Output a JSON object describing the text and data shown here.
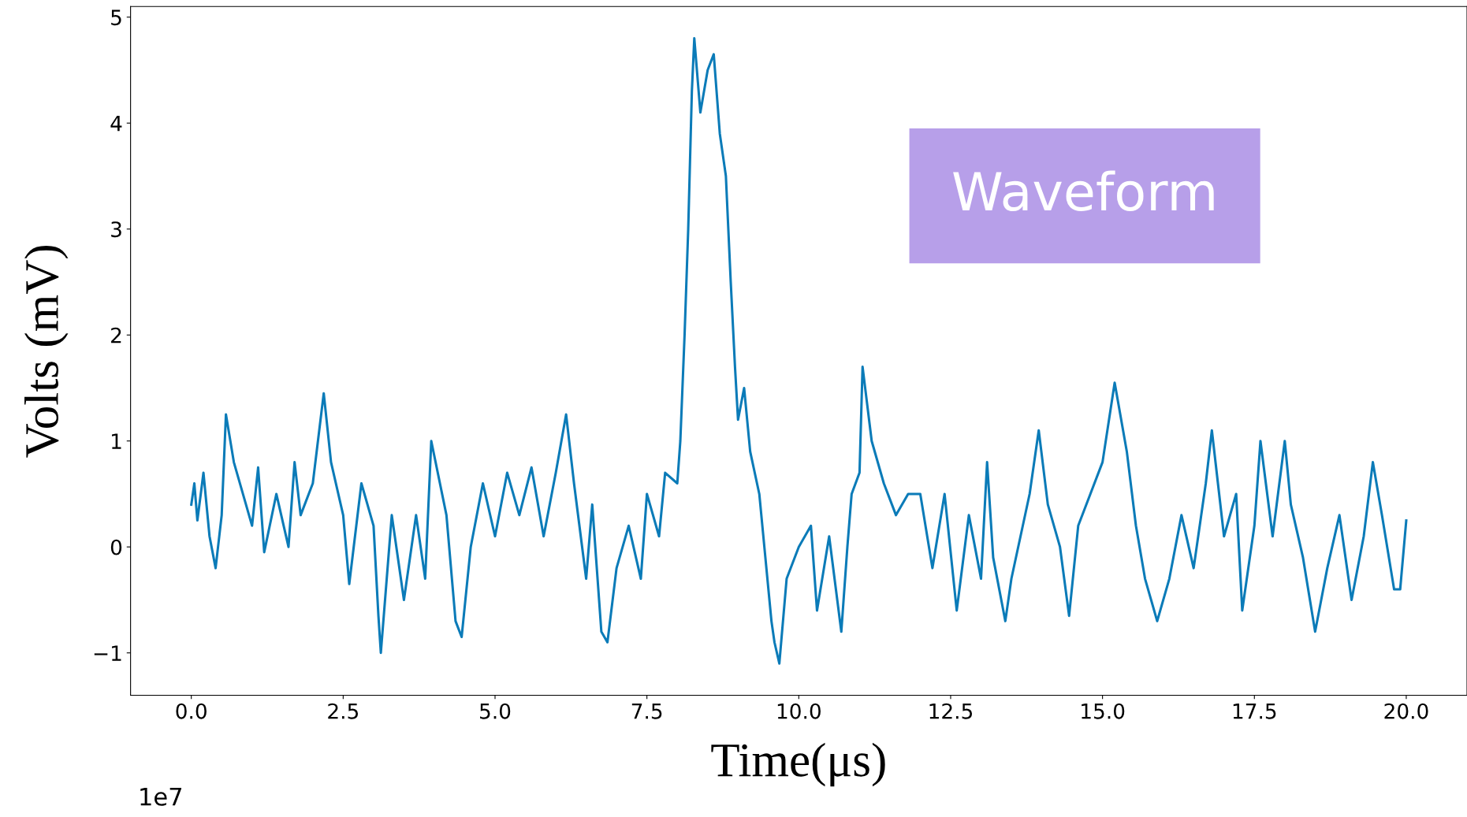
{
  "chart_data": {
    "type": "line",
    "xlabel": "Time(μs)",
    "ylabel": "Volts (mV)",
    "annotations": [
      "Waveform",
      "1e7"
    ],
    "xlim": [
      -1.0,
      21.0
    ],
    "xticks": [
      {
        "value": 0,
        "label": "0.0"
      },
      {
        "value": 2.5,
        "label": "2.5"
      },
      {
        "value": 5,
        "label": "5.0"
      },
      {
        "value": 7.5,
        "label": "7.5"
      },
      {
        "value": 10,
        "label": "10.0"
      },
      {
        "value": 12.5,
        "label": "12.5"
      },
      {
        "value": 15,
        "label": "15.0"
      },
      {
        "value": 17.5,
        "label": "17.5"
      },
      {
        "value": 20,
        "label": "20.0"
      }
    ],
    "ylim": [
      -1.4,
      5.1
    ],
    "yticks": [
      {
        "value": -1,
        "label": "−1"
      },
      0,
      1,
      2,
      3,
      4,
      5
    ],
    "series": [
      {
        "color": "#0b7bb8",
        "x": [
          0.0,
          0.05,
          0.1,
          0.2,
          0.3,
          0.4,
          0.5,
          0.57,
          0.7,
          0.9,
          1.0,
          1.1,
          1.2,
          1.4,
          1.6,
          1.7,
          1.8,
          2.0,
          2.18,
          2.3,
          2.5,
          2.6,
          2.8,
          3.0,
          3.08,
          3.12,
          3.3,
          3.5,
          3.7,
          3.85,
          3.95,
          4.2,
          4.35,
          4.45,
          4.6,
          4.8,
          5.0,
          5.2,
          5.4,
          5.6,
          5.8,
          6.0,
          6.17,
          6.3,
          6.5,
          6.6,
          6.75,
          6.85,
          7.0,
          7.2,
          7.4,
          7.5,
          7.7,
          7.8,
          8.0,
          8.05,
          8.12,
          8.18,
          8.24,
          8.28,
          8.38,
          8.5,
          8.6,
          8.7,
          8.8,
          8.88,
          8.95,
          9.0,
          9.1,
          9.2,
          9.35,
          9.45,
          9.55,
          9.6,
          9.68,
          9.8,
          10.0,
          10.2,
          10.3,
          10.5,
          10.7,
          10.8,
          10.87,
          11.0,
          11.05,
          11.2,
          11.4,
          11.6,
          11.8,
          12.0,
          12.2,
          12.4,
          12.6,
          12.8,
          13.0,
          13.1,
          13.2,
          13.4,
          13.5,
          13.65,
          13.8,
          13.95,
          14.1,
          14.3,
          14.45,
          14.6,
          14.8,
          15.0,
          15.2,
          15.4,
          15.55,
          15.7,
          15.9,
          16.1,
          16.3,
          16.5,
          16.7,
          16.8,
          17.0,
          17.2,
          17.3,
          17.5,
          17.6,
          17.8,
          18.0,
          18.1,
          18.3,
          18.5,
          18.7,
          18.9,
          19.1,
          19.3,
          19.45,
          19.6,
          19.8,
          19.9,
          20.0
        ],
        "values": [
          0.4,
          0.6,
          0.25,
          0.7,
          0.1,
          -0.2,
          0.3,
          1.25,
          0.8,
          0.4,
          0.2,
          0.75,
          -0.05,
          0.5,
          0.0,
          0.8,
          0.3,
          0.6,
          1.45,
          0.8,
          0.3,
          -0.35,
          0.6,
          0.2,
          -0.65,
          -1.0,
          0.3,
          -0.5,
          0.3,
          -0.3,
          1.0,
          0.3,
          -0.7,
          -0.85,
          0.0,
          0.6,
          0.1,
          0.7,
          0.3,
          0.75,
          0.1,
          0.7,
          1.25,
          0.6,
          -0.3,
          0.4,
          -0.8,
          -0.9,
          -0.2,
          0.2,
          -0.3,
          0.5,
          0.1,
          0.7,
          0.6,
          1.0,
          2.0,
          3.0,
          4.3,
          4.8,
          4.1,
          4.5,
          4.65,
          3.9,
          3.5,
          2.5,
          1.7,
          1.2,
          1.5,
          0.9,
          0.5,
          -0.1,
          -0.7,
          -0.9,
          -1.1,
          -0.3,
          0.0,
          0.2,
          -0.6,
          0.1,
          -0.8,
          0.0,
          0.5,
          0.7,
          1.7,
          1.0,
          0.6,
          0.3,
          0.5,
          0.5,
          -0.2,
          0.5,
          -0.6,
          0.3,
          -0.3,
          0.8,
          -0.1,
          -0.7,
          -0.3,
          0.1,
          0.5,
          1.1,
          0.4,
          0.0,
          -0.65,
          0.2,
          0.5,
          0.8,
          1.55,
          0.9,
          0.2,
          -0.3,
          -0.7,
          -0.3,
          0.3,
          -0.2,
          0.6,
          1.1,
          0.1,
          0.5,
          -0.6,
          0.2,
          1.0,
          0.1,
          1.0,
          0.4,
          -0.1,
          -0.8,
          -0.2,
          0.3,
          -0.5,
          0.1,
          0.8,
          0.3,
          -0.4,
          -0.4,
          0.25
        ]
      }
    ]
  }
}
